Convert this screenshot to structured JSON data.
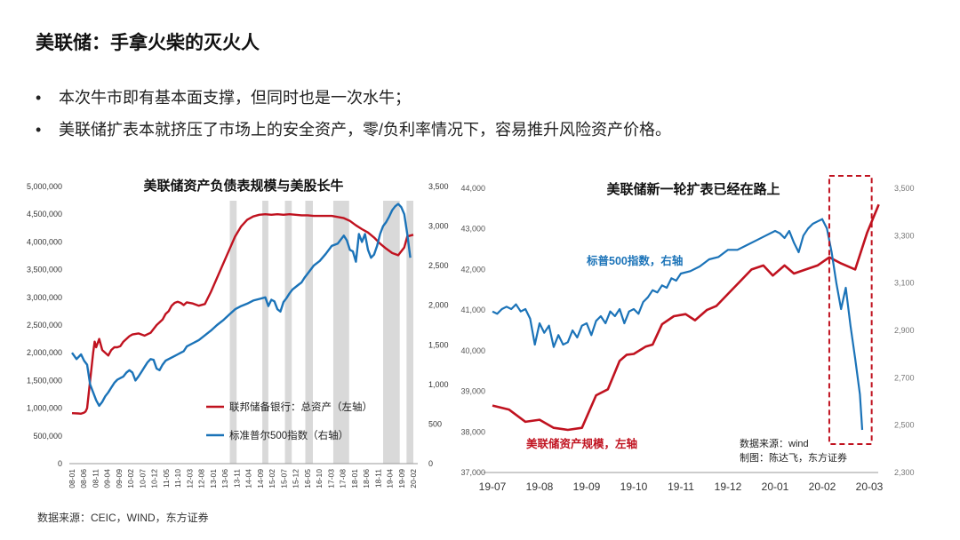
{
  "page": {
    "title": "美联储：手拿火柴的灭火人",
    "bullets": [
      "本次牛市即有基本面支撑，但同时也是一次水牛；",
      "美联储扩表本就挤压了市场上的安全资产，零/负利率情况下，容易推升风险资产价格。"
    ],
    "source": "数据来源：CEIC，WIND，东方证券"
  },
  "chart_data": [
    {
      "type": "line",
      "title": "美联储资产负债表规模与美股长牛",
      "x_tick_labels": [
        "08-01",
        "08-06",
        "08-11",
        "09-04",
        "09-09",
        "10-02",
        "10-07",
        "10-12",
        "11-05",
        "11-10",
        "12-03",
        "12-08",
        "13-01",
        "13-06",
        "13-11",
        "14-04",
        "14-09",
        "15-02",
        "15-07",
        "15-12",
        "16-05",
        "16-10",
        "17-03",
        "17-08",
        "18-01",
        "18-06",
        "18-11",
        "19-04",
        "19-09",
        "20-02"
      ],
      "y_left": {
        "ylim": [
          0,
          5000000
        ],
        "tick_labels": [
          "0",
          "500,000",
          "1,000,000",
          "1,500,000",
          "2,000,000",
          "2,500,000",
          "3,000,000",
          "3,500,000",
          "4,000,000",
          "4,500,000",
          "5,000,000"
        ]
      },
      "y_right": {
        "ylim": [
          0,
          3500
        ],
        "tick_labels": [
          "0",
          "500",
          "1,000",
          "1,500",
          "2,000",
          "2,500",
          "3,000",
          "3,500"
        ]
      },
      "shaded_periods": [
        [
          10.45,
          10.9
        ],
        [
          12.6,
          13.0
        ],
        [
          14.1,
          14.55
        ],
        [
          15.45,
          15.95
        ],
        [
          17.3,
          18.35
        ],
        [
          20.6,
          21.7
        ],
        [
          22.15,
          22.6
        ]
      ],
      "series": [
        {
          "name": "联邦储备银行：总资产（左轴）",
          "color": "#c0121f",
          "axis": "left",
          "x": [
            0,
            0.4,
            0.6,
            0.8,
            0.9,
            1.0,
            1.2,
            1.4,
            1.5,
            1.6,
            1.8,
            2.0,
            2.4,
            2.6,
            2.8,
            3.0,
            3.2,
            3.4,
            3.6,
            3.8,
            4.0,
            4.4,
            4.8,
            5.2,
            5.6,
            6.0,
            6.2,
            6.4,
            6.6,
            6.8,
            7.0,
            7.2,
            7.4,
            7.6,
            8.0,
            8.4,
            8.8,
            9.2,
            9.6,
            10.0,
            10.4,
            10.8,
            11.2,
            11.6,
            12.0,
            12.4,
            12.8,
            13.2,
            13.6,
            14.0,
            14.4,
            14.8,
            15.2,
            15.6,
            16.0,
            16.4,
            16.8,
            17.2,
            17.6,
            18.0,
            18.4,
            18.8,
            19.2,
            19.6,
            20.0,
            20.4,
            20.8,
            21.2,
            21.6,
            22.0,
            22.2,
            22.6
          ],
          "values": [
            910000,
            905000,
            900000,
            920000,
            940000,
            1000000,
            1500000,
            2000000,
            2200000,
            2100000,
            2250000,
            2050000,
            1950000,
            2050000,
            2100000,
            2100000,
            2120000,
            2200000,
            2250000,
            2300000,
            2330000,
            2350000,
            2310000,
            2360000,
            2500000,
            2600000,
            2700000,
            2750000,
            2850000,
            2900000,
            2920000,
            2900000,
            2860000,
            2910000,
            2890000,
            2850000,
            2880000,
            3100000,
            3350000,
            3600000,
            3850000,
            4100000,
            4280000,
            4400000,
            4460000,
            4490000,
            4500000,
            4490000,
            4500000,
            4490000,
            4500000,
            4490000,
            4480000,
            4480000,
            4470000,
            4470000,
            4470000,
            4470000,
            4450000,
            4430000,
            4380000,
            4300000,
            4230000,
            4170000,
            4080000,
            3970000,
            3880000,
            3800000,
            3760000,
            3900000,
            4100000,
            4130000
          ]
        },
        {
          "name": "标准普尔500指数（右轴）",
          "color": "#1b73b8",
          "axis": "right",
          "x": [
            0,
            0.3,
            0.6,
            0.8,
            1.0,
            1.2,
            1.4,
            1.6,
            1.8,
            2.0,
            2.2,
            2.4,
            2.6,
            2.8,
            3.0,
            3.2,
            3.4,
            3.6,
            3.8,
            4.0,
            4.2,
            4.4,
            4.6,
            4.8,
            5.0,
            5.2,
            5.4,
            5.6,
            5.8,
            6.0,
            6.2,
            6.4,
            6.8,
            7.0,
            7.2,
            7.4,
            7.6,
            8.0,
            8.4,
            8.8,
            9.2,
            9.6,
            10.0,
            10.4,
            10.8,
            11.2,
            11.6,
            12.0,
            12.4,
            12.8,
            13.0,
            13.2,
            13.4,
            13.6,
            13.8,
            14.0,
            14.2,
            14.4,
            14.6,
            15.0,
            15.2,
            15.4,
            15.6,
            15.8,
            16.0,
            16.4,
            16.8,
            17.2,
            17.6,
            18.0,
            18.2,
            18.4,
            18.6,
            18.8,
            19.0,
            19.2,
            19.4,
            19.6,
            19.8,
            20.0,
            20.2,
            20.4,
            20.6,
            20.8,
            21.0,
            21.2,
            21.4,
            21.6,
            21.8,
            22.0,
            22.2,
            22.4
          ],
          "values": [
            1400,
            1320,
            1380,
            1300,
            1250,
            1000,
            900,
            800,
            730,
            780,
            850,
            900,
            960,
            1020,
            1060,
            1080,
            1100,
            1150,
            1180,
            1150,
            1050,
            1100,
            1160,
            1220,
            1280,
            1320,
            1310,
            1200,
            1180,
            1250,
            1300,
            1320,
            1360,
            1380,
            1400,
            1420,
            1480,
            1520,
            1560,
            1620,
            1680,
            1750,
            1810,
            1880,
            1950,
            1990,
            2020,
            2060,
            2080,
            2100,
            1990,
            2070,
            2050,
            1950,
            1920,
            2040,
            2090,
            2150,
            2200,
            2260,
            2290,
            2350,
            2400,
            2450,
            2500,
            2560,
            2650,
            2750,
            2780,
            2880,
            2820,
            2700,
            2680,
            2550,
            2900,
            2800,
            2900,
            2700,
            2600,
            2640,
            2750,
            2900,
            3000,
            3050,
            3120,
            3200,
            3250,
            3280,
            3240,
            3150,
            2900,
            2600
          ]
        }
      ]
    },
    {
      "type": "line",
      "title": "美联储新一轮扩表已经在路上",
      "x_tick_labels": [
        "19-07",
        "19-08",
        "19-09",
        "19-10",
        "19-11",
        "19-12",
        "20-01",
        "20-02",
        "20-03"
      ],
      "y_left": {
        "ylim": [
          37000,
          44000
        ],
        "tick_labels": [
          "37,000",
          "38,000",
          "39,000",
          "40,000",
          "41,000",
          "42,000",
          "43,000",
          "44,000"
        ]
      },
      "y_right": {
        "ylim": [
          2300,
          3500
        ],
        "tick_labels": [
          "2,300",
          "2,500",
          "2,700",
          "2,900",
          "3,100",
          "3,300",
          "3,500"
        ]
      },
      "highlight": [
        7.15,
        8.05
      ],
      "annotations": {
        "sp500_label": "标普500指数，右轴",
        "fed_label": "美联储资产规模，左轴",
        "source_line1": "数据来源：wind",
        "source_line2": "制图：陈达飞，东方证券"
      },
      "series": [
        {
          "name": "美联储资产规模，左轴",
          "color": "#c0121f",
          "axis": "left",
          "x": [
            0.0,
            0.35,
            0.7,
            1.0,
            1.3,
            1.6,
            1.9,
            2.2,
            2.45,
            2.7,
            2.85,
            3.0,
            3.25,
            3.4,
            3.6,
            3.85,
            4.1,
            4.3,
            4.55,
            4.75,
            5.0,
            5.25,
            5.5,
            5.75,
            5.95,
            6.2,
            6.4,
            6.65,
            6.9,
            7.15,
            7.4,
            7.7,
            7.95,
            8.2
          ],
          "values": [
            38650,
            38550,
            38250,
            38300,
            38100,
            38050,
            38100,
            38900,
            39050,
            39750,
            39900,
            39920,
            40100,
            40150,
            40650,
            40850,
            40900,
            40750,
            41000,
            41100,
            41400,
            41700,
            42000,
            42100,
            41850,
            42100,
            41900,
            42000,
            42100,
            42300,
            42150,
            42000,
            42900,
            43600
          ]
        },
        {
          "name": "标普500指数，右轴",
          "color": "#1b73b8",
          "axis": "right",
          "x": [
            0.0,
            0.1,
            0.2,
            0.3,
            0.4,
            0.5,
            0.6,
            0.7,
            0.8,
            0.9,
            1.0,
            1.1,
            1.2,
            1.3,
            1.4,
            1.5,
            1.6,
            1.7,
            1.8,
            1.9,
            2.0,
            2.1,
            2.2,
            2.3,
            2.4,
            2.5,
            2.6,
            2.7,
            2.8,
            2.9,
            3.0,
            3.1,
            3.2,
            3.3,
            3.4,
            3.5,
            3.6,
            3.7,
            3.8,
            3.9,
            4.0,
            4.2,
            4.4,
            4.6,
            4.8,
            5.0,
            5.2,
            5.4,
            5.6,
            5.8,
            6.0,
            6.1,
            6.2,
            6.3,
            6.4,
            6.5,
            6.6,
            6.7,
            6.8,
            6.9,
            7.0,
            7.1,
            7.2,
            7.3,
            7.4,
            7.5,
            7.6,
            7.7,
            7.8,
            7.85
          ],
          "values": [
            2980,
            2970,
            2990,
            3000,
            2990,
            3010,
            2980,
            2990,
            2950,
            2840,
            2930,
            2890,
            2920,
            2830,
            2880,
            2840,
            2850,
            2900,
            2870,
            2920,
            2930,
            2880,
            2940,
            2960,
            2930,
            2980,
            2960,
            2990,
            2930,
            2980,
            2990,
            2970,
            3020,
            3040,
            3070,
            3060,
            3090,
            3080,
            3120,
            3110,
            3140,
            3150,
            3170,
            3200,
            3210,
            3240,
            3240,
            3260,
            3280,
            3300,
            3320,
            3310,
            3290,
            3320,
            3270,
            3230,
            3300,
            3330,
            3350,
            3360,
            3370,
            3330,
            3230,
            3100,
            2990,
            3080,
            2920,
            2780,
            2630,
            2480
          ]
        }
      ]
    }
  ]
}
